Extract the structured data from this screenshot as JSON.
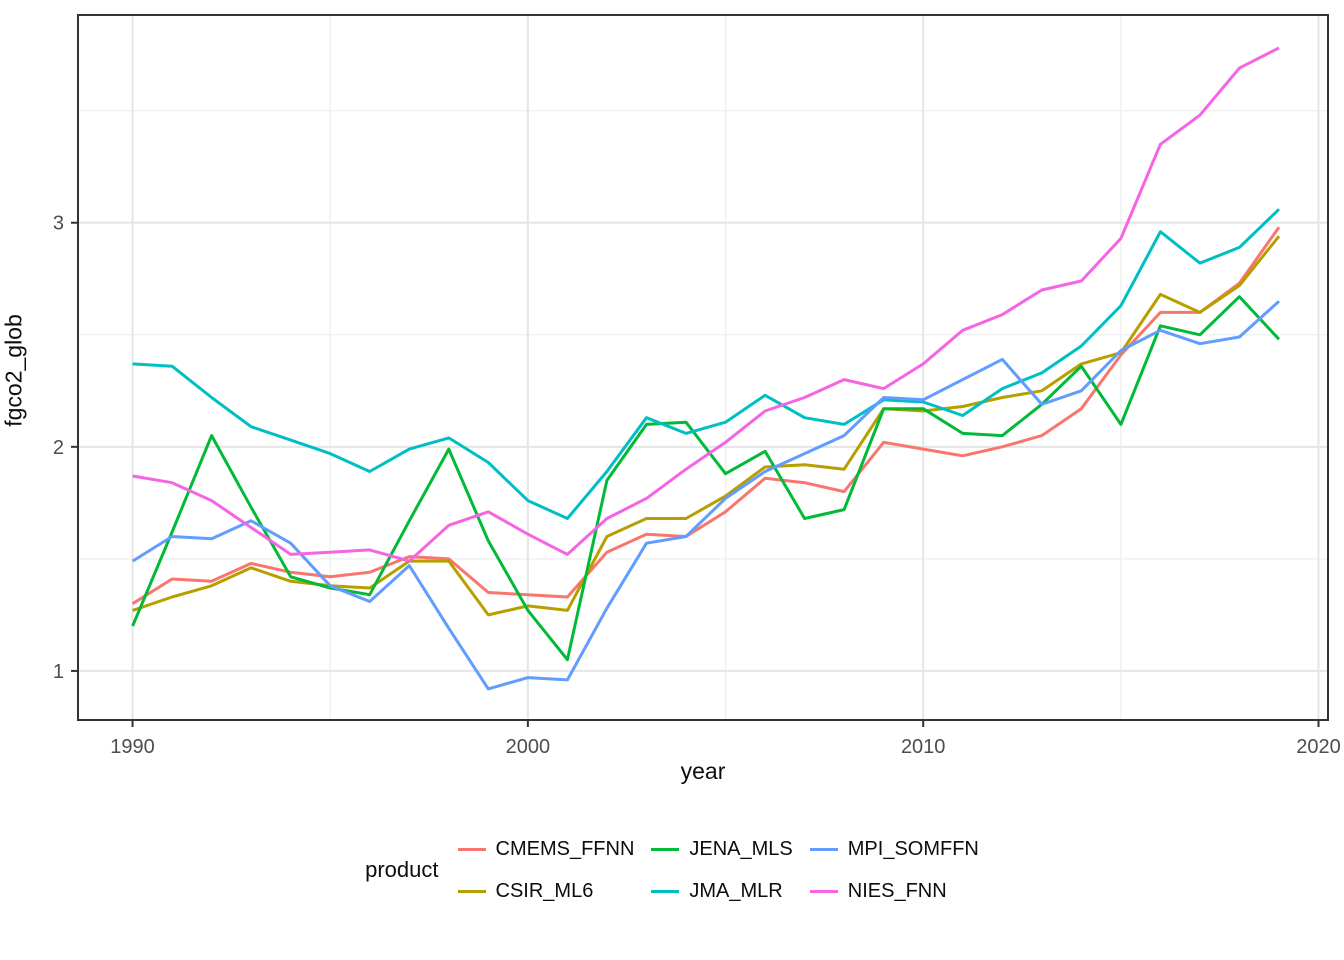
{
  "chart_data": {
    "type": "line",
    "title": "",
    "xlabel": "year",
    "ylabel": "fgco2_glob",
    "legend_title": "product",
    "legend_position": "bottom",
    "grid": true,
    "x": [
      1990,
      1991,
      1992,
      1993,
      1994,
      1995,
      1996,
      1997,
      1998,
      1999,
      2000,
      2001,
      2002,
      2003,
      2004,
      2005,
      2006,
      2007,
      2008,
      2009,
      2010,
      2011,
      2012,
      2013,
      2014,
      2015,
      2016,
      2017,
      2018,
      2019
    ],
    "series": [
      {
        "name": "CMEMS_FFNN",
        "color": "#F8766D",
        "values": [
          1.3,
          1.41,
          1.4,
          1.48,
          1.44,
          1.42,
          1.44,
          1.51,
          1.5,
          1.35,
          1.34,
          1.33,
          1.53,
          1.61,
          1.6,
          1.71,
          1.86,
          1.84,
          1.8,
          2.02,
          1.99,
          1.96,
          2.0,
          2.05,
          2.17,
          2.41,
          2.6,
          2.6,
          2.73,
          2.98
        ]
      },
      {
        "name": "CSIR_ML6",
        "color": "#B79F00",
        "values": [
          1.27,
          1.33,
          1.38,
          1.46,
          1.4,
          1.38,
          1.37,
          1.49,
          1.49,
          1.25,
          1.29,
          1.27,
          1.6,
          1.68,
          1.68,
          1.78,
          1.91,
          1.92,
          1.9,
          2.17,
          2.16,
          2.18,
          2.22,
          2.25,
          2.37,
          2.42,
          2.68,
          2.6,
          2.72,
          2.94
        ]
      },
      {
        "name": "JENA_MLS",
        "color": "#00BA38",
        "values": [
          1.2,
          1.62,
          2.05,
          1.73,
          1.42,
          1.37,
          1.34,
          1.67,
          1.99,
          1.58,
          1.27,
          1.05,
          1.85,
          2.1,
          2.11,
          1.88,
          1.98,
          1.68,
          1.72,
          2.17,
          2.17,
          2.06,
          2.05,
          2.19,
          2.36,
          2.1,
          2.54,
          2.5,
          2.67,
          2.48
        ]
      },
      {
        "name": "JMA_MLR",
        "color": "#00BFC4",
        "values": [
          2.37,
          2.36,
          2.22,
          2.09,
          2.03,
          1.97,
          1.89,
          1.99,
          2.04,
          1.93,
          1.76,
          1.68,
          1.89,
          2.13,
          2.06,
          2.11,
          2.23,
          2.13,
          2.1,
          2.21,
          2.2,
          2.14,
          2.26,
          2.33,
          2.45,
          2.63,
          2.96,
          2.82,
          2.89,
          3.06
        ]
      },
      {
        "name": "MPI_SOMFFN",
        "color": "#619CFF",
        "values": [
          1.49,
          1.6,
          1.59,
          1.67,
          1.57,
          1.38,
          1.31,
          1.47,
          1.19,
          0.92,
          0.97,
          0.96,
          1.28,
          1.57,
          1.6,
          1.77,
          1.89,
          1.97,
          2.05,
          2.22,
          2.21,
          2.3,
          2.39,
          2.19,
          2.25,
          2.43,
          2.52,
          2.46,
          2.49,
          2.65
        ]
      },
      {
        "name": "NIES_FNN",
        "color": "#F564E3",
        "values": [
          1.87,
          1.84,
          1.76,
          1.64,
          1.52,
          1.53,
          1.54,
          1.49,
          1.65,
          1.71,
          1.61,
          1.52,
          1.68,
          1.77,
          1.9,
          2.02,
          2.16,
          2.22,
          2.3,
          2.26,
          2.37,
          2.52,
          2.59,
          2.7,
          2.74,
          2.93,
          3.35,
          3.48,
          3.69,
          3.78
        ]
      }
    ],
    "x_ticks": {
      "major": [
        1990,
        2000,
        2010,
        2020
      ],
      "minor": [
        1995,
        2005,
        2015
      ]
    },
    "y_ticks": {
      "major": [
        1,
        2,
        3
      ],
      "minor": [
        1.5,
        2.5,
        3.5
      ]
    },
    "x_domain": [
      1988.62,
      2020.24
    ],
    "y_domain": [
      0.781,
      3.927
    ]
  },
  "style": {
    "grid_major_color": "#e5e5e5",
    "grid_minor_color": "#f0f0f0",
    "panel_border_color": "#333333",
    "tick_color": "#333333",
    "tick_label_color": "#4d4d4d"
  }
}
